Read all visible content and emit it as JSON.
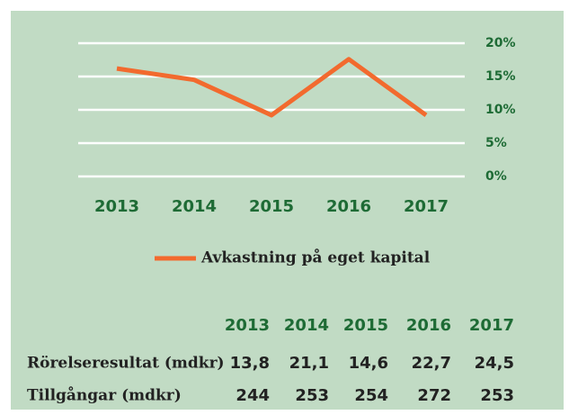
{
  "chart_data": {
    "type": "line",
    "categories": [
      "2013",
      "2014",
      "2015",
      "2016",
      "2017"
    ],
    "series": [
      {
        "name": "Avkastning på eget kapital",
        "color": "#f26a2e",
        "values": [
          16.2,
          14.5,
          9.2,
          17.6,
          9.2
        ]
      }
    ],
    "ylim": [
      0,
      20
    ],
    "yticks": [
      {
        "value": 0,
        "label": "0%"
      },
      {
        "value": 5,
        "label": "5%"
      },
      {
        "value": 10,
        "label": "10%"
      },
      {
        "value": 15,
        "label": "15%"
      },
      {
        "value": 20,
        "label": "20%"
      }
    ],
    "grid": true
  },
  "table": {
    "header": [
      "2013",
      "2014",
      "2015",
      "2016",
      "2017"
    ],
    "rows": [
      [
        "Rörelseresultat (mdkr)",
        "13,8",
        "21,1",
        "14,6",
        "22,7",
        "24,5"
      ],
      [
        "Tillgångar (mdkr)",
        "244",
        "253",
        "254",
        "272",
        "253"
      ]
    ]
  }
}
